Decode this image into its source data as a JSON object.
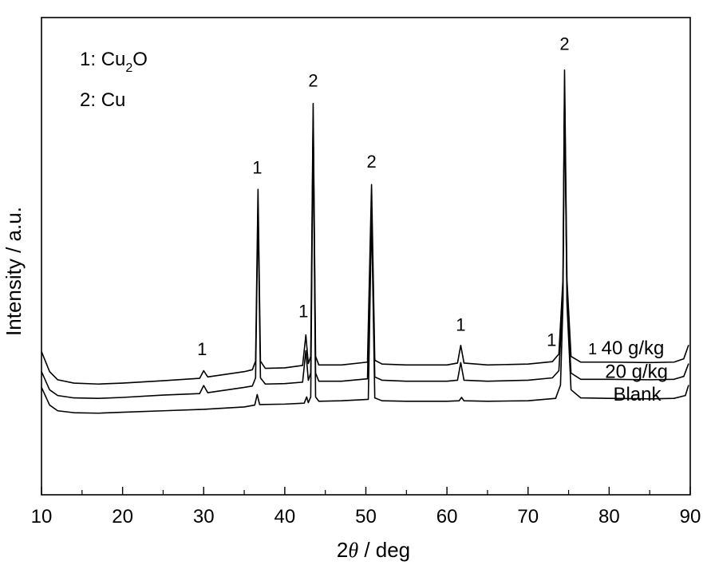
{
  "chart_data": {
    "type": "line",
    "title": "",
    "xlabel": {
      "prefix": "2",
      "symbol": "θ",
      "suffix": " / deg"
    },
    "ylabel": "Intensity / a.u.",
    "xlim": [
      10,
      90
    ],
    "ylim": [
      0,
      100
    ],
    "x_ticks": [
      10,
      20,
      30,
      40,
      50,
      60,
      70,
      80,
      90
    ],
    "x_tick_labels": [
      "10",
      "20",
      "30",
      "40",
      "50",
      "60",
      "70",
      "80",
      "90"
    ],
    "y_ticks_shown": false,
    "grid": false,
    "legend": {
      "placement": "top-left",
      "entries": [
        {
          "key": "1",
          "sep": ": ",
          "base": "Cu",
          "sub": "2",
          "after": "O"
        },
        {
          "key": "2",
          "sep": ": ",
          "base": "Cu",
          "sub": "",
          "after": ""
        }
      ]
    },
    "series": [
      {
        "name": "40 g/kg",
        "baseline": 21.1,
        "points": [
          [
            10,
            30
          ],
          [
            11,
            25.8
          ],
          [
            12,
            24.1
          ],
          [
            14,
            23.4
          ],
          [
            17,
            23.2
          ],
          [
            20,
            23.4
          ],
          [
            25,
            23.9
          ],
          [
            29.5,
            24.4
          ],
          [
            30,
            26
          ],
          [
            30.5,
            24.7
          ],
          [
            35,
            25.8
          ],
          [
            36,
            26.2
          ],
          [
            36.4,
            28
          ],
          [
            36.7,
            64
          ],
          [
            37.0,
            28
          ],
          [
            37.6,
            26.5
          ],
          [
            40,
            26.6
          ],
          [
            42.2,
            27.1
          ],
          [
            42.6,
            33.5
          ],
          [
            42.9,
            27.5
          ],
          [
            43.2,
            29
          ],
          [
            43.5,
            82
          ],
          [
            43.8,
            29
          ],
          [
            44.2,
            27.2
          ],
          [
            47,
            27.2
          ],
          [
            50.2,
            27.8
          ],
          [
            50.7,
            65
          ],
          [
            51.1,
            28.2
          ],
          [
            52,
            27.4
          ],
          [
            55,
            27.2
          ],
          [
            60,
            27.2
          ],
          [
            61.3,
            27.6
          ],
          [
            61.7,
            31.3
          ],
          [
            62.1,
            27.6
          ],
          [
            65,
            27.2
          ],
          [
            70,
            27.4
          ],
          [
            73,
            27.9
          ],
          [
            73.8,
            29.5
          ],
          [
            74.3,
            45
          ],
          [
            74.5,
            89
          ],
          [
            74.8,
            45
          ],
          [
            75.3,
            29
          ],
          [
            76.5,
            27.8
          ],
          [
            80,
            27.8
          ],
          [
            85,
            27.7
          ],
          [
            88,
            27.8
          ],
          [
            89.2,
            28.5
          ],
          [
            89.8,
            31.4
          ]
        ]
      },
      {
        "name": "20 g/kg",
        "baseline": 21.1,
        "points": [
          [
            10,
            25.8
          ],
          [
            11,
            22
          ],
          [
            12,
            20.8
          ],
          [
            14,
            20.3
          ],
          [
            17,
            20.2
          ],
          [
            20,
            20.4
          ],
          [
            25,
            20.9
          ],
          [
            29.5,
            21.2
          ],
          [
            30,
            22.9
          ],
          [
            30.5,
            21.4
          ],
          [
            35,
            22.5
          ],
          [
            36,
            22.8
          ],
          [
            36.4,
            24.5
          ],
          [
            36.7,
            60
          ],
          [
            37.0,
            24.5
          ],
          [
            37.6,
            23.2
          ],
          [
            40,
            23.3
          ],
          [
            42.2,
            23.6
          ],
          [
            42.6,
            30.2
          ],
          [
            42.9,
            24
          ],
          [
            43.2,
            25.5
          ],
          [
            43.5,
            79
          ],
          [
            43.8,
            25.5
          ],
          [
            44.2,
            23.8
          ],
          [
            47,
            23.8
          ],
          [
            50.2,
            24.3
          ],
          [
            50.7,
            61
          ],
          [
            51.1,
            24.7
          ],
          [
            52,
            24
          ],
          [
            55,
            23.8
          ],
          [
            60,
            23.8
          ],
          [
            61.3,
            24
          ],
          [
            61.7,
            27.7
          ],
          [
            62.1,
            24
          ],
          [
            65,
            23.8
          ],
          [
            70,
            24
          ],
          [
            73,
            24.5
          ],
          [
            73.8,
            26
          ],
          [
            74.3,
            41
          ],
          [
            74.5,
            86
          ],
          [
            74.8,
            41
          ],
          [
            75.3,
            25.5
          ],
          [
            76.5,
            24.2
          ],
          [
            80,
            24.2
          ],
          [
            85,
            24.1
          ],
          [
            88,
            24.2
          ],
          [
            89.2,
            24.8
          ],
          [
            89.8,
            27.5
          ]
        ]
      },
      {
        "name": "Blank",
        "baseline": 21.1,
        "points": [
          [
            10,
            22.5
          ],
          [
            11,
            18.8
          ],
          [
            12,
            17.6
          ],
          [
            14,
            17.2
          ],
          [
            17,
            17.1
          ],
          [
            20,
            17.3
          ],
          [
            25,
            17.6
          ],
          [
            30,
            17.9
          ],
          [
            35,
            18.4
          ],
          [
            36.3,
            18.8
          ],
          [
            36.6,
            21
          ],
          [
            36.9,
            18.9
          ],
          [
            40,
            19
          ],
          [
            42.4,
            19.2
          ],
          [
            42.7,
            20.5
          ],
          [
            42.9,
            19.3
          ],
          [
            43.2,
            20.5
          ],
          [
            43.5,
            78
          ],
          [
            43.8,
            20.5
          ],
          [
            44.2,
            19.6
          ],
          [
            47,
            19.7
          ],
          [
            50.3,
            20
          ],
          [
            50.7,
            59
          ],
          [
            51.1,
            20.3
          ],
          [
            52,
            19.7
          ],
          [
            55,
            19.6
          ],
          [
            60,
            19.6
          ],
          [
            61.5,
            19.7
          ],
          [
            61.8,
            20.4
          ],
          [
            62.1,
            19.7
          ],
          [
            65,
            19.6
          ],
          [
            70,
            19.7
          ],
          [
            73.4,
            20.2
          ],
          [
            74,
            23
          ],
          [
            74.3,
            40
          ],
          [
            74.5,
            84
          ],
          [
            74.8,
            40
          ],
          [
            75.3,
            22
          ],
          [
            76.5,
            20.3
          ],
          [
            80,
            20.2
          ],
          [
            85,
            20.1
          ],
          [
            88,
            20.2
          ],
          [
            89.4,
            20.8
          ],
          [
            89.8,
            23
          ]
        ]
      }
    ],
    "series_labels": [
      {
        "prefix": "1",
        "text": "40 g/kg",
        "x": 77.4,
        "y": 29.4
      },
      {
        "prefix": "",
        "text": "20 g/kg",
        "x": 79.5,
        "y": 24.5
      },
      {
        "prefix": "",
        "text": "Blank",
        "x": 80.5,
        "y": 19.7
      }
    ],
    "annotations": [
      {
        "text": "1",
        "x": 29.8,
        "y": 29.3
      },
      {
        "text": "1",
        "x": 36.6,
        "y": 67.3
      },
      {
        "text": "1",
        "x": 42.3,
        "y": 37.2
      },
      {
        "text": "2",
        "x": 43.5,
        "y": 85.5
      },
      {
        "text": "2",
        "x": 50.7,
        "y": 68.6
      },
      {
        "text": "1",
        "x": 61.7,
        "y": 34.4
      },
      {
        "text": "1",
        "x": 72.9,
        "y": 31.2
      },
      {
        "text": "2",
        "x": 74.5,
        "y": 93.2
      }
    ]
  }
}
